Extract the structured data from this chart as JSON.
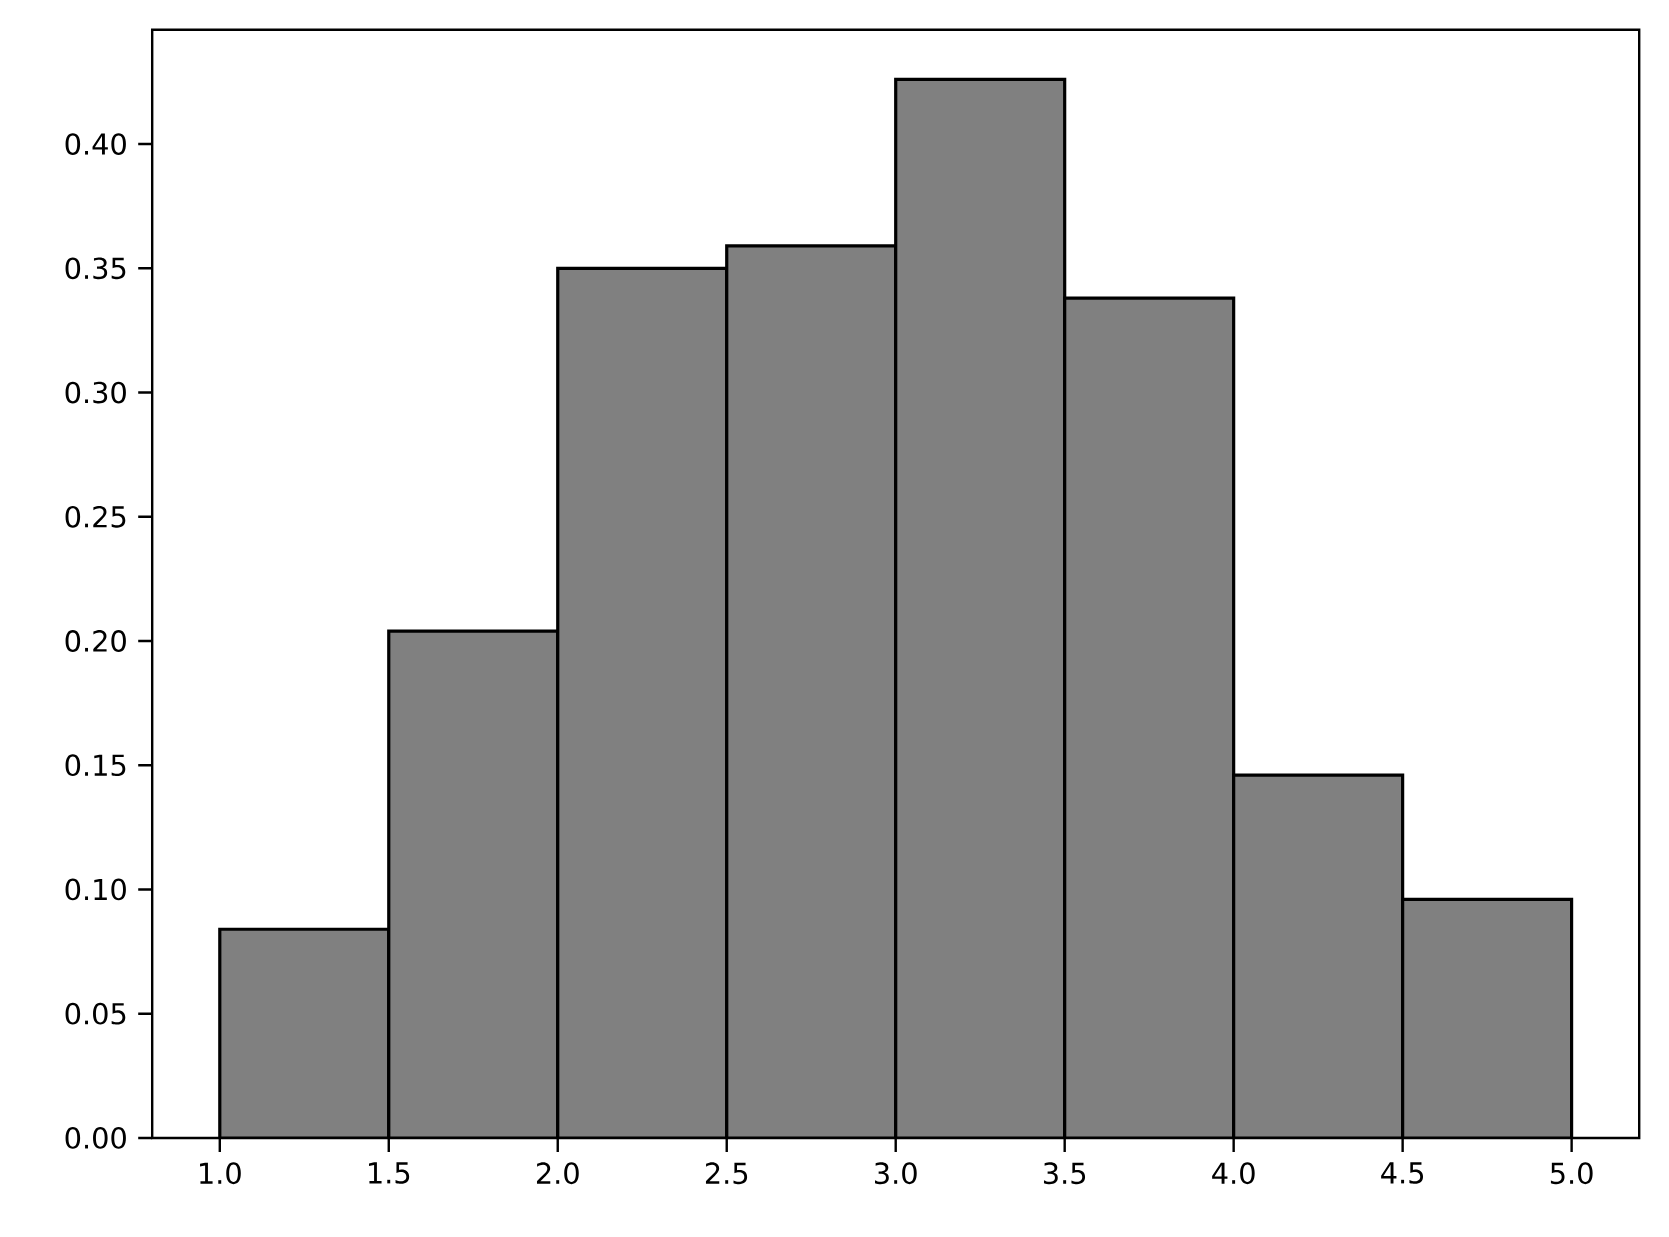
{
  "chart_data": {
    "type": "histogram",
    "bins": [
      1.0,
      1.5,
      2.0,
      2.5,
      3.0,
      3.5,
      4.0,
      4.5,
      5.0
    ],
    "values": [
      0.084,
      0.204,
      0.35,
      0.359,
      0.426,
      0.338,
      0.146,
      0.096
    ],
    "color": "#808080",
    "xlim": [
      0.8,
      5.2
    ],
    "ylim": [
      0,
      0.446
    ],
    "xticks": [
      {
        "value": 1.0,
        "label": "1.0"
      },
      {
        "value": 1.5,
        "label": "1.5"
      },
      {
        "value": 2.0,
        "label": "2.0"
      },
      {
        "value": 2.5,
        "label": "2.5"
      },
      {
        "value": 3.0,
        "label": "3.0"
      },
      {
        "value": 3.5,
        "label": "3.5"
      },
      {
        "value": 4.0,
        "label": "4.0"
      },
      {
        "value": 4.5,
        "label": "4.5"
      },
      {
        "value": 5.0,
        "label": "5.0"
      }
    ],
    "yticks": [
      {
        "value": 0,
        "label": "0.00"
      },
      {
        "value": 0.05,
        "label": "0.05"
      },
      {
        "value": 0.1,
        "label": "0.10"
      },
      {
        "value": 0.15,
        "label": "0.15"
      },
      {
        "value": 0.2,
        "label": "0.20"
      },
      {
        "value": 0.25,
        "label": "0.25"
      },
      {
        "value": 0.3,
        "label": "0.30"
      },
      {
        "value": 0.35,
        "label": "0.35"
      },
      {
        "value": 0.4,
        "label": "0.40"
      }
    ]
  }
}
